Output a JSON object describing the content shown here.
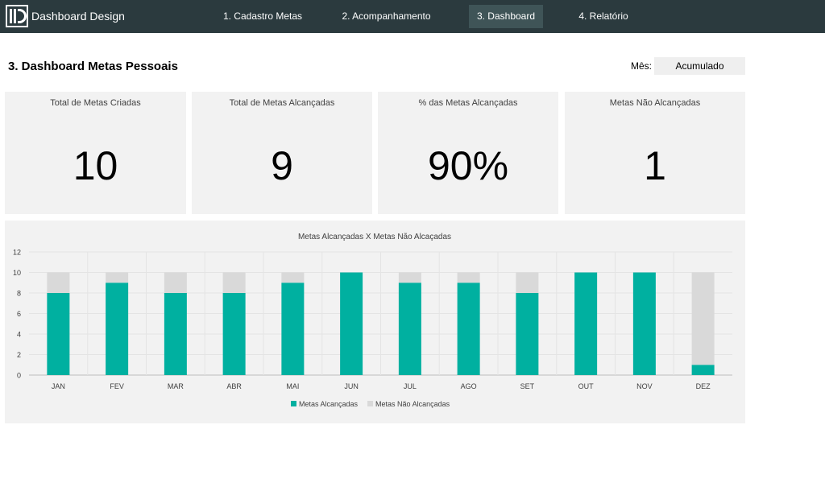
{
  "app": {
    "brand": "Dashboard Design"
  },
  "nav": {
    "items": [
      {
        "label": "1. Cadastro Metas"
      },
      {
        "label": "2. Acompanhamento"
      },
      {
        "label": "3. Dashboard"
      },
      {
        "label": "4. Relatório"
      }
    ],
    "active_index": 2
  },
  "page": {
    "title": "3. Dashboard Metas Pessoais"
  },
  "filter": {
    "label": "Mês:",
    "value": "Acumulado"
  },
  "kpis": [
    {
      "label": "Total de Metas Criadas",
      "value": "10"
    },
    {
      "label": "Total de Metas Alcançadas",
      "value": "9"
    },
    {
      "label": "% das Metas Alcançadas",
      "value": "90%"
    },
    {
      "label": "Metas Não Alcançadas",
      "value": "1"
    }
  ],
  "colors": {
    "achieved": "#00b0a0",
    "not_achieved": "#d9d9d9",
    "topbar": "#2b3a3e"
  },
  "chart_data": {
    "type": "bar",
    "stacked": true,
    "title": "Metas Alcançadas X Metas Não Alcaçadas",
    "categories": [
      "JAN",
      "FEV",
      "MAR",
      "ABR",
      "MAI",
      "JUN",
      "JUL",
      "AGO",
      "SET",
      "OUT",
      "NOV",
      "DEZ"
    ],
    "series": [
      {
        "name": "Metas Alcançadas",
        "values": [
          8,
          9,
          8,
          8,
          9,
          10,
          9,
          9,
          8,
          10,
          10,
          1
        ]
      },
      {
        "name": "Metas Não Alcançadas",
        "values": [
          2,
          1,
          2,
          2,
          1,
          0,
          1,
          1,
          2,
          0,
          0,
          9
        ]
      }
    ],
    "ylim": [
      0,
      12
    ],
    "yticks": [
      0,
      2,
      4,
      6,
      8,
      10,
      12
    ],
    "grid": true,
    "legend": "bottom"
  }
}
